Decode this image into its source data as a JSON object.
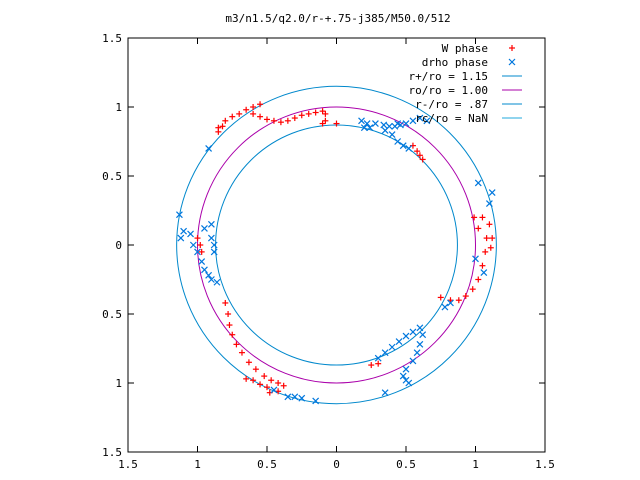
{
  "chart_data": {
    "type": "scatter",
    "title": "m3/n1.5/q2.0/r-+.75-j385/M50.0/512",
    "xlabel": "",
    "ylabel": "",
    "xlim": [
      -1.5,
      1.5
    ],
    "ylim": [
      -1.5,
      1.5
    ],
    "x_ticks": [
      -1.5,
      -1,
      -0.5,
      0,
      0.5,
      1,
      1.5
    ],
    "x_tick_labels": [
      "1.5",
      "1",
      "0.5",
      "0",
      "0.5",
      "1",
      "1.5"
    ],
    "y_ticks": [
      -1.5,
      -1,
      -0.5,
      0,
      0.5,
      1,
      1.5
    ],
    "y_tick_labels": [
      "1.5",
      "1",
      "0.5",
      "0",
      "0.5",
      "1",
      "1.5"
    ],
    "grid": false,
    "legend_position": "top-right",
    "colors": {
      "w_phase": "#ff0000",
      "drho_phase": "#0077dd",
      "r_plus": "#0088cc",
      "r_o": "#aa00aa",
      "r_minus": "#0088cc",
      "r_c": "#22aadd",
      "axes": "#000000"
    },
    "circles": [
      {
        "label": "r+/ro = 1.15",
        "radius": 1.15,
        "color": "#0088cc"
      },
      {
        "label": "ro/ro = 1.00",
        "radius": 1.0,
        "color": "#aa00aa"
      },
      {
        "label": "r-/ro = .87",
        "radius": 0.87,
        "color": "#0088cc"
      },
      {
        "label": "rc/ro = NaN",
        "radius": null,
        "color": "#22aadd"
      }
    ],
    "series": [
      {
        "name": "W phase",
        "marker": "plus",
        "color": "#ff0000",
        "points": [
          [
            -0.85,
            0.85
          ],
          [
            -0.8,
            0.9
          ],
          [
            -0.75,
            0.93
          ],
          [
            -0.7,
            0.95
          ],
          [
            -0.65,
            0.98
          ],
          [
            -0.6,
            1.0
          ],
          [
            -0.55,
            1.02
          ],
          [
            -0.6,
            0.95
          ],
          [
            -0.55,
            0.93
          ],
          [
            -0.5,
            0.91
          ],
          [
            -0.45,
            0.9
          ],
          [
            -0.4,
            0.89
          ],
          [
            -0.35,
            0.9
          ],
          [
            -0.3,
            0.92
          ],
          [
            -0.25,
            0.94
          ],
          [
            -0.2,
            0.95
          ],
          [
            -0.15,
            0.96
          ],
          [
            -0.1,
            0.97
          ],
          [
            -0.08,
            0.95
          ],
          [
            -0.08,
            0.9
          ],
          [
            -0.1,
            0.88
          ],
          [
            0,
            0.88
          ],
          [
            -0.85,
            0.82
          ],
          [
            -0.82,
            0.86
          ],
          [
            0.55,
            0.72
          ],
          [
            0.58,
            0.68
          ],
          [
            0.6,
            0.65
          ],
          [
            0.62,
            0.62
          ],
          [
            0.99,
            0.2
          ],
          [
            1.02,
            0.12
          ],
          [
            1.05,
            0.2
          ],
          [
            1.08,
            0.05
          ],
          [
            1.07,
            -0.05
          ],
          [
            1.05,
            -0.15
          ],
          [
            1.02,
            -0.25
          ],
          [
            0.98,
            -0.32
          ],
          [
            0.93,
            -0.37
          ],
          [
            0.88,
            -0.4
          ],
          [
            0.82,
            -0.4
          ],
          [
            1.1,
            0.15
          ],
          [
            1.12,
            0.05
          ],
          [
            1.11,
            -0.02
          ],
          [
            -1.0,
            0.05
          ],
          [
            -0.98,
            0.0
          ],
          [
            -0.97,
            -0.05
          ],
          [
            -0.8,
            -0.42
          ],
          [
            -0.78,
            -0.5
          ],
          [
            -0.77,
            -0.58
          ],
          [
            -0.75,
            -0.65
          ],
          [
            -0.72,
            -0.72
          ],
          [
            -0.68,
            -0.78
          ],
          [
            -0.63,
            -0.85
          ],
          [
            -0.58,
            -0.9
          ],
          [
            -0.52,
            -0.95
          ],
          [
            -0.47,
            -0.98
          ],
          [
            -0.42,
            -1.0
          ],
          [
            -0.38,
            -1.02
          ],
          [
            -0.5,
            -1.03
          ],
          [
            -0.55,
            -1.01
          ],
          [
            -0.6,
            -0.98
          ],
          [
            -0.65,
            -0.97
          ],
          [
            -0.48,
            -1.07
          ],
          [
            -0.42,
            -1.06
          ],
          [
            0.25,
            -0.87
          ],
          [
            0.3,
            -0.86
          ],
          [
            0.75,
            -0.38
          ]
        ]
      },
      {
        "name": "drho phase",
        "marker": "cross",
        "color": "#0077dd",
        "points": [
          [
            0.22,
            0.88
          ],
          [
            0.28,
            0.88
          ],
          [
            0.34,
            0.87
          ],
          [
            0.38,
            0.86
          ],
          [
            0.42,
            0.86
          ],
          [
            0.46,
            0.87
          ],
          [
            0.5,
            0.88
          ],
          [
            0.55,
            0.9
          ],
          [
            0.6,
            0.92
          ],
          [
            0.65,
            0.9
          ],
          [
            0.35,
            0.83
          ],
          [
            0.4,
            0.8
          ],
          [
            0.44,
            0.75
          ],
          [
            0.48,
            0.72
          ],
          [
            0.52,
            0.7
          ],
          [
            0.44,
            0.88
          ],
          [
            0.24,
            0.85
          ],
          [
            1.02,
            0.45
          ],
          [
            1.12,
            0.38
          ],
          [
            1.1,
            0.3
          ],
          [
            1.0,
            -0.1
          ],
          [
            1.06,
            -0.2
          ],
          [
            -1.12,
            0.05
          ],
          [
            -1.1,
            0.1
          ],
          [
            -1.05,
            0.08
          ],
          [
            -1.03,
            0.0
          ],
          [
            -1.0,
            -0.05
          ],
          [
            -0.97,
            -0.12
          ],
          [
            -0.95,
            -0.18
          ],
          [
            -0.92,
            -0.22
          ],
          [
            -0.9,
            -0.25
          ],
          [
            -0.86,
            -0.27
          ],
          [
            -0.9,
            0.05
          ],
          [
            -0.88,
            0.0
          ],
          [
            -0.88,
            -0.05
          ],
          [
            -0.9,
            0.15
          ],
          [
            -0.95,
            0.12
          ],
          [
            0.3,
            -0.82
          ],
          [
            0.35,
            -0.78
          ],
          [
            0.4,
            -0.74
          ],
          [
            0.45,
            -0.7
          ],
          [
            0.5,
            -0.66
          ],
          [
            0.55,
            -0.63
          ],
          [
            0.6,
            -0.6
          ],
          [
            0.62,
            -0.65
          ],
          [
            0.6,
            -0.72
          ],
          [
            0.58,
            -0.78
          ],
          [
            0.55,
            -0.84
          ],
          [
            0.5,
            -0.9
          ],
          [
            0.48,
            -0.95
          ],
          [
            0.5,
            -0.98
          ],
          [
            0.52,
            -1.0
          ],
          [
            0.35,
            -1.07
          ],
          [
            0.78,
            -0.45
          ],
          [
            0.82,
            -0.42
          ],
          [
            -0.45,
            -1.05
          ],
          [
            -0.35,
            -1.1
          ],
          [
            -0.3,
            -1.1
          ],
          [
            -0.25,
            -1.11
          ],
          [
            -0.15,
            -1.13
          ],
          [
            -0.92,
            0.7
          ],
          [
            -1.13,
            0.22
          ],
          [
            0.18,
            0.9
          ],
          [
            0.2,
            0.85
          ]
        ]
      }
    ]
  },
  "legend": [
    {
      "label": "W phase",
      "marker": "plus",
      "color": "#ff0000"
    },
    {
      "label": "drho phase",
      "marker": "cross",
      "color": "#0077dd"
    },
    {
      "label": "r+/ro = 1.15",
      "marker": "line",
      "color": "#0088cc"
    },
    {
      "label": "ro/ro = 1.00",
      "marker": "line",
      "color": "#aa00aa"
    },
    {
      "label": "r-/ro = .87",
      "marker": "line",
      "color": "#0088cc"
    },
    {
      "label": "rc/ro = NaN",
      "marker": "line",
      "color": "#22aadd"
    }
  ]
}
